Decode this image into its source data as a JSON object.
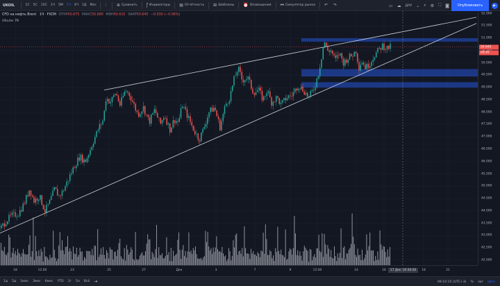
{
  "toolbar": {
    "symbol": "UKOIL",
    "intervals": [
      "1С",
      "5С",
      "15С",
      "1Ч",
      "5М",
      "1Ч",
      "4Ч",
      "1Д",
      "Мес"
    ],
    "active_interval_index": 5,
    "buttons": [
      {
        "label": "Сравнить",
        "icon": "plus-circle-icon"
      },
      {
        "label": "Индикаторы",
        "icon": "indicators-icon"
      },
      {
        "label": "Отчётность",
        "icon": "report-icon"
      },
      {
        "label": "Шаблоны",
        "icon": "templates-icon"
      },
      {
        "label": "Оповещения",
        "icon": "alarm-icon"
      },
      {
        "label": "Симулятор рынка",
        "icon": "replay-icon"
      }
    ],
    "save_label": "ДАУ",
    "publish_label": "Опубликовать"
  },
  "legend": {
    "title": "CFD на нефть Brent",
    "interval": "1Ч",
    "exchange": "FXCM",
    "open_label": "ОТКР",
    "open": "50.675",
    "high_label": "МАКС",
    "high": "50.680",
    "low_label": "МИН",
    "low": "50.615",
    "close_label": "ЗАКР",
    "close": "50.645",
    "change": "−0.030 (−0.06%)",
    "volume_label": "Объём",
    "volume": "79"
  },
  "price_scale": {
    "ticks": [
      "52.000",
      "51.500",
      "51.000",
      "50.500",
      "50.000",
      "49.500",
      "49.000",
      "48.500",
      "48.000",
      "47.500",
      "47.000",
      "46.500",
      "46.000",
      "45.500",
      "45.000",
      "44.500",
      "44.000",
      "43.500",
      "43.000",
      "42.500",
      "42.000"
    ],
    "last_price": "50.645",
    "last_price_color": "#ef5350",
    "countdown": "09:45"
  },
  "time_scale": {
    "ticks": [
      {
        "label": "18",
        "pos": 22
      },
      {
        "label": "12:00",
        "pos": 61
      },
      {
        "label": "23",
        "pos": 104
      },
      {
        "label": "25",
        "pos": 157
      },
      {
        "label": "27",
        "pos": 207
      },
      {
        "label": "Дек",
        "pos": 258
      },
      {
        "label": "3",
        "pos": 311
      },
      {
        "label": "7",
        "pos": 367
      },
      {
        "label": "9",
        "pos": 418
      },
      {
        "label": "12:00",
        "pos": 457
      },
      {
        "label": "14",
        "pos": 513
      },
      {
        "label": "16",
        "pos": 553
      },
      {
        "label": "18",
        "pos": 610
      },
      {
        "label": "21",
        "pos": 645
      }
    ],
    "crosshair_date": "17 Дек '20   00:00"
  },
  "bottom": {
    "ranges": [
      "1д",
      "5д",
      "1мес",
      "3мес",
      "6мес",
      "YTD",
      "1г",
      "5л",
      "Всё"
    ],
    "goto_icon": "calendar-range-icon",
    "clock": "09:10:15 (UTC+3)",
    "percent": "%",
    "log": "лог",
    "auto": "авто"
  },
  "colors": {
    "background": "#131722",
    "up": "#26a69a",
    "down": "#ef5350",
    "zone": "#2962ff",
    "accent": "#2962ff"
  },
  "chart_data": {
    "type": "candlestick",
    "y_axis": {
      "min": 41.8,
      "max": 52.1
    },
    "price_path_points": [
      [
        0,
        43.3
      ],
      [
        8,
        43.6
      ],
      [
        16,
        43.8
      ],
      [
        26,
        43.9
      ],
      [
        34,
        44.3
      ],
      [
        42,
        44.9
      ],
      [
        48,
        44.4
      ],
      [
        56,
        44.6
      ],
      [
        64,
        44.0
      ],
      [
        70,
        44.3
      ],
      [
        78,
        44.9
      ],
      [
        84,
        44.6
      ],
      [
        90,
        44.8
      ],
      [
        98,
        45.3
      ],
      [
        106,
        45.8
      ],
      [
        114,
        46.2
      ],
      [
        122,
        46.0
      ],
      [
        128,
        46.4
      ],
      [
        136,
        47.0
      ],
      [
        142,
        47.4
      ],
      [
        148,
        47.7
      ],
      [
        152,
        48.6
      ],
      [
        158,
        48.4
      ],
      [
        166,
        48.8
      ],
      [
        172,
        48.3
      ],
      [
        180,
        48.9
      ],
      [
        186,
        48.7
      ],
      [
        192,
        48.3
      ],
      [
        198,
        47.9
      ],
      [
        206,
        48.2
      ],
      [
        214,
        47.6
      ],
      [
        222,
        48.1
      ],
      [
        230,
        47.5
      ],
      [
        236,
        47.9
      ],
      [
        244,
        47.3
      ],
      [
        250,
        47.7
      ],
      [
        256,
        47.6
      ],
      [
        262,
        48.3
      ],
      [
        270,
        47.8
      ],
      [
        278,
        47.3
      ],
      [
        286,
        46.9
      ],
      [
        292,
        47.3
      ],
      [
        300,
        48.0
      ],
      [
        308,
        48.2
      ],
      [
        316,
        47.4
      ],
      [
        324,
        48.3
      ],
      [
        330,
        48.6
      ],
      [
        336,
        49.3
      ],
      [
        342,
        49.8
      ],
      [
        348,
        49.3
      ],
      [
        356,
        49.4
      ],
      [
        364,
        48.8
      ],
      [
        372,
        48.9
      ],
      [
        378,
        48.5
      ],
      [
        384,
        48.9
      ],
      [
        390,
        48.4
      ],
      [
        398,
        48.6
      ],
      [
        404,
        48.3
      ],
      [
        412,
        48.6
      ],
      [
        420,
        48.7
      ],
      [
        428,
        49.1
      ],
      [
        436,
        48.9
      ],
      [
        444,
        48.6
      ],
      [
        452,
        49.0
      ],
      [
        458,
        49.6
      ],
      [
        462,
        50.2
      ],
      [
        466,
        50.9
      ],
      [
        470,
        50.5
      ],
      [
        476,
        50.5
      ],
      [
        482,
        50.1
      ],
      [
        488,
        50.4
      ],
      [
        494,
        50.0
      ],
      [
        500,
        50.2
      ],
      [
        506,
        50.3
      ],
      [
        512,
        50.5
      ],
      [
        516,
        49.8
      ],
      [
        520,
        50.1
      ],
      [
        526,
        49.8
      ],
      [
        532,
        50.0
      ],
      [
        538,
        50.3
      ],
      [
        544,
        50.5
      ],
      [
        550,
        50.7
      ],
      [
        556,
        50.6
      ],
      [
        562,
        50.65
      ]
    ],
    "trendlines": [
      {
        "from": [
          "Ноя 24",
          48.9
        ],
        "to": [
          "Дек 21",
          51.85
        ]
      },
      {
        "from": [
          "Ноя 17",
          43.1
        ],
        "to": [
          "Дек 21",
          51.6
        ]
      }
    ],
    "zones": [
      {
        "top": 51.0,
        "bottom": 50.86
      },
      {
        "top": 49.75,
        "bottom": 49.45
      },
      {
        "top": 49.22,
        "bottom": 49.0
      }
    ],
    "last_price": 50.645
  }
}
